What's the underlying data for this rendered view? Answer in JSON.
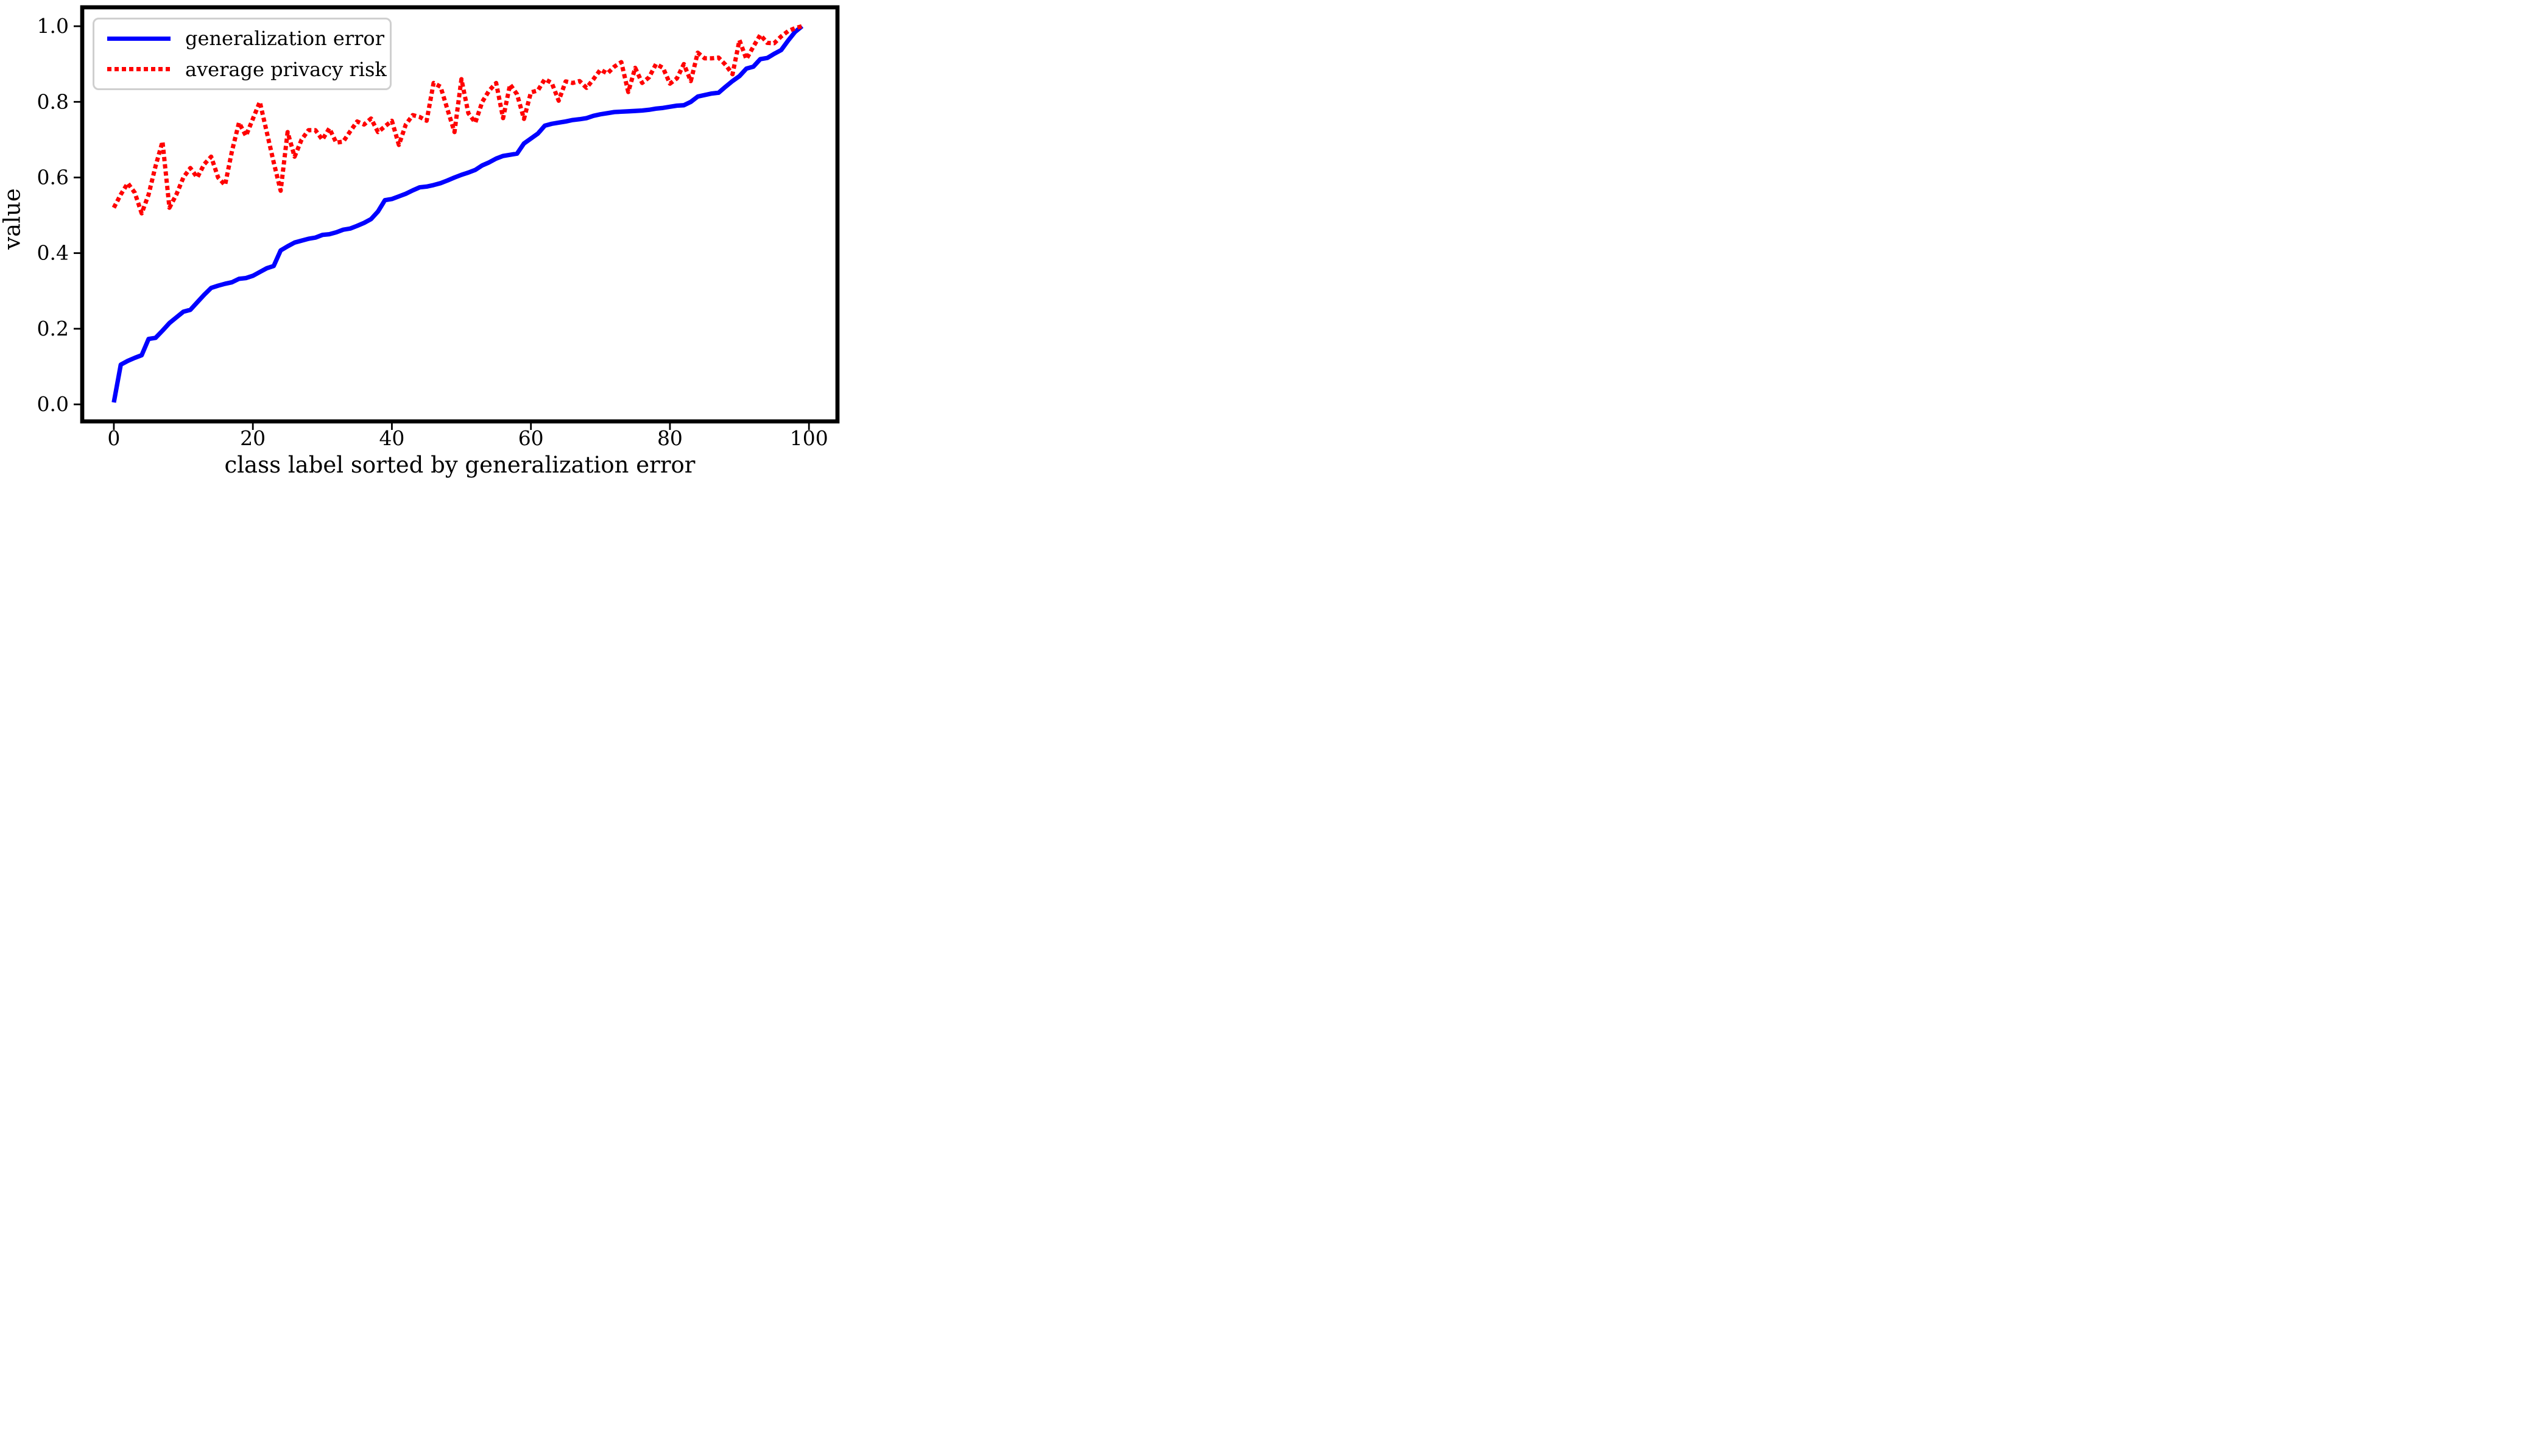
{
  "figure": {
    "background_color": "#ffffff",
    "frame_color": "#000000"
  },
  "chart_data": {
    "type": "line",
    "title": "",
    "xlabel": "class label sorted by generalization error",
    "ylabel": "value",
    "grid": false,
    "legend": {
      "position": "upper left",
      "entries": [
        "generalization error",
        "average privacy risk"
      ]
    },
    "xlim": [
      -4.55,
      104.1
    ],
    "ylim": [
      -0.045,
      1.05
    ],
    "xticks": [
      0,
      20,
      40,
      60,
      80,
      100
    ],
    "xtick_labels": [
      "0",
      "20",
      "40",
      "60",
      "80",
      "100"
    ],
    "yticks": [
      0.0,
      0.2,
      0.4,
      0.6,
      0.8,
      1.0
    ],
    "ytick_labels": [
      "0.0",
      "0.2",
      "0.4",
      "0.6",
      "0.8",
      "1.0"
    ],
    "x": [
      0,
      1,
      2,
      3,
      4,
      5,
      6,
      7,
      8,
      9,
      10,
      11,
      12,
      13,
      14,
      15,
      16,
      17,
      18,
      19,
      20,
      21,
      22,
      23,
      24,
      25,
      26,
      27,
      28,
      29,
      30,
      31,
      32,
      33,
      34,
      35,
      36,
      37,
      38,
      39,
      40,
      41,
      42,
      43,
      44,
      45,
      46,
      47,
      48,
      49,
      50,
      51,
      52,
      53,
      54,
      55,
      56,
      57,
      58,
      59,
      60,
      61,
      62,
      63,
      64,
      65,
      66,
      67,
      68,
      69,
      70,
      71,
      72,
      73,
      74,
      75,
      76,
      77,
      78,
      79,
      80,
      81,
      82,
      83,
      84,
      85,
      86,
      87,
      88,
      89,
      90,
      91,
      92,
      93,
      94,
      95,
      96,
      97,
      98,
      99
    ],
    "series": [
      {
        "name": "generalization error",
        "color": "#0000ff",
        "line_style": "solid",
        "values": [
          0.005,
          0.105,
          0.115,
          0.123,
          0.13,
          0.173,
          0.176,
          0.195,
          0.215,
          0.23,
          0.245,
          0.25,
          0.27,
          0.29,
          0.308,
          0.314,
          0.319,
          0.323,
          0.332,
          0.334,
          0.34,
          0.35,
          0.36,
          0.366,
          0.407,
          0.418,
          0.428,
          0.433,
          0.438,
          0.441,
          0.448,
          0.45,
          0.455,
          0.462,
          0.465,
          0.472,
          0.48,
          0.49,
          0.51,
          0.54,
          0.543,
          0.55,
          0.557,
          0.566,
          0.574,
          0.576,
          0.58,
          0.585,
          0.592,
          0.6,
          0.607,
          0.613,
          0.62,
          0.632,
          0.64,
          0.65,
          0.657,
          0.66,
          0.663,
          0.69,
          0.703,
          0.716,
          0.737,
          0.742,
          0.745,
          0.748,
          0.752,
          0.754,
          0.757,
          0.763,
          0.767,
          0.77,
          0.773,
          0.774,
          0.775,
          0.776,
          0.777,
          0.779,
          0.782,
          0.784,
          0.787,
          0.79,
          0.791,
          0.8,
          0.814,
          0.818,
          0.822,
          0.824,
          0.84,
          0.855,
          0.868,
          0.888,
          0.893,
          0.913,
          0.916,
          0.927,
          0.937,
          0.962,
          0.985,
          1.0
        ]
      },
      {
        "name": "average privacy risk",
        "color": "#ff0000",
        "line_style": "dotted",
        "values": [
          0.52,
          0.555,
          0.585,
          0.56,
          0.505,
          0.555,
          0.63,
          0.695,
          0.52,
          0.555,
          0.6,
          0.625,
          0.6,
          0.635,
          0.655,
          0.6,
          0.58,
          0.67,
          0.745,
          0.71,
          0.755,
          0.8,
          0.72,
          0.64,
          0.565,
          0.72,
          0.655,
          0.7,
          0.725,
          0.725,
          0.7,
          0.73,
          0.692,
          0.695,
          0.722,
          0.748,
          0.74,
          0.756,
          0.72,
          0.735,
          0.75,
          0.686,
          0.74,
          0.765,
          0.76,
          0.75,
          0.85,
          0.84,
          0.78,
          0.72,
          0.86,
          0.77,
          0.745,
          0.8,
          0.83,
          0.85,
          0.757,
          0.846,
          0.82,
          0.755,
          0.825,
          0.83,
          0.86,
          0.85,
          0.803,
          0.854,
          0.85,
          0.855,
          0.837,
          0.86,
          0.885,
          0.875,
          0.893,
          0.905,
          0.826,
          0.89,
          0.85,
          0.865,
          0.9,
          0.89,
          0.848,
          0.862,
          0.9,
          0.855,
          0.93,
          0.915,
          0.915,
          0.917,
          0.898,
          0.873,
          0.963,
          0.913,
          0.946,
          0.977,
          0.956,
          0.955,
          0.973,
          0.987,
          0.995,
          1.0
        ]
      }
    ]
  }
}
